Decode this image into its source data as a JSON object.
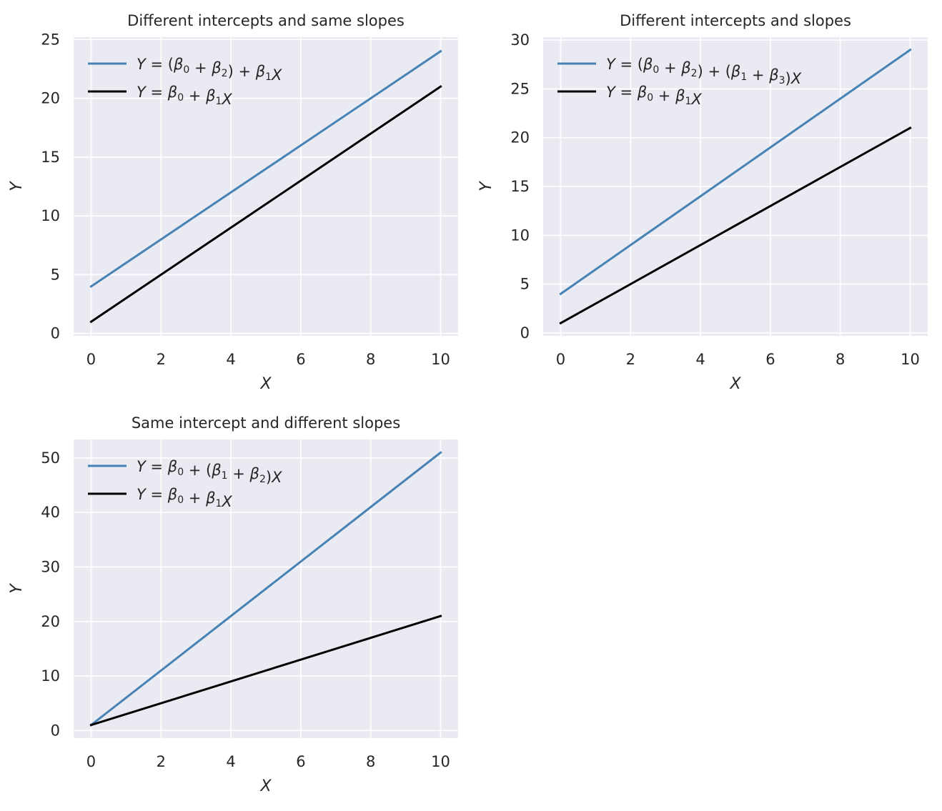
{
  "chart_data": [
    {
      "type": "line",
      "title": "Different intercepts and same slopes",
      "xlabel": "X",
      "ylabel": "Y",
      "xlim": [
        -0.5,
        10.5
      ],
      "ylim": [
        -0.2,
        25.2
      ],
      "xticks": [
        0,
        2,
        4,
        6,
        8,
        10
      ],
      "yticks": [
        0,
        5,
        10,
        15,
        20,
        25
      ],
      "grid": true,
      "legend_position": "top-left",
      "series": [
        {
          "name": "Y = (β0 + β2) + β1X",
          "color": "#4682b4",
          "x": [
            0,
            10
          ],
          "y": [
            4,
            24
          ]
        },
        {
          "name": "Y = β0 + β1X",
          "color": "#000000",
          "x": [
            0,
            10
          ],
          "y": [
            1,
            21
          ]
        }
      ]
    },
    {
      "type": "line",
      "title": "Different intercepts and slopes",
      "xlabel": "X",
      "ylabel": "Y",
      "xlim": [
        -0.5,
        10.5
      ],
      "ylim": [
        -0.3,
        30.3
      ],
      "xticks": [
        0,
        2,
        4,
        6,
        8,
        10
      ],
      "yticks": [
        0,
        5,
        10,
        15,
        20,
        25,
        30
      ],
      "grid": true,
      "legend_position": "top-left",
      "series": [
        {
          "name": "Y = (β0 + β2) + (β1 + β3)X",
          "color": "#4682b4",
          "x": [
            0,
            10
          ],
          "y": [
            4,
            29
          ]
        },
        {
          "name": "Y = β0 + β1X",
          "color": "#000000",
          "x": [
            0,
            10
          ],
          "y": [
            1,
            21
          ]
        }
      ]
    },
    {
      "type": "line",
      "title": "Same intercept and different slopes",
      "xlabel": "X",
      "ylabel": "Y",
      "xlim": [
        -0.5,
        10.5
      ],
      "ylim": [
        -1.4,
        53.4
      ],
      "xticks": [
        0,
        2,
        4,
        6,
        8,
        10
      ],
      "yticks": [
        0,
        10,
        20,
        30,
        40,
        50
      ],
      "grid": true,
      "legend_position": "top-left",
      "series": [
        {
          "name": "Y = β0 + (β1 + β2)X",
          "color": "#4682b4",
          "x": [
            0,
            10
          ],
          "y": [
            1,
            51
          ]
        },
        {
          "name": "Y = β0 + β1X",
          "color": "#000000",
          "x": [
            0,
            10
          ],
          "y": [
            1,
            21
          ]
        }
      ]
    }
  ],
  "style": {
    "axes_background": "#eaeaf2",
    "grid_color": "#ffffff",
    "text_color": "#262626"
  }
}
